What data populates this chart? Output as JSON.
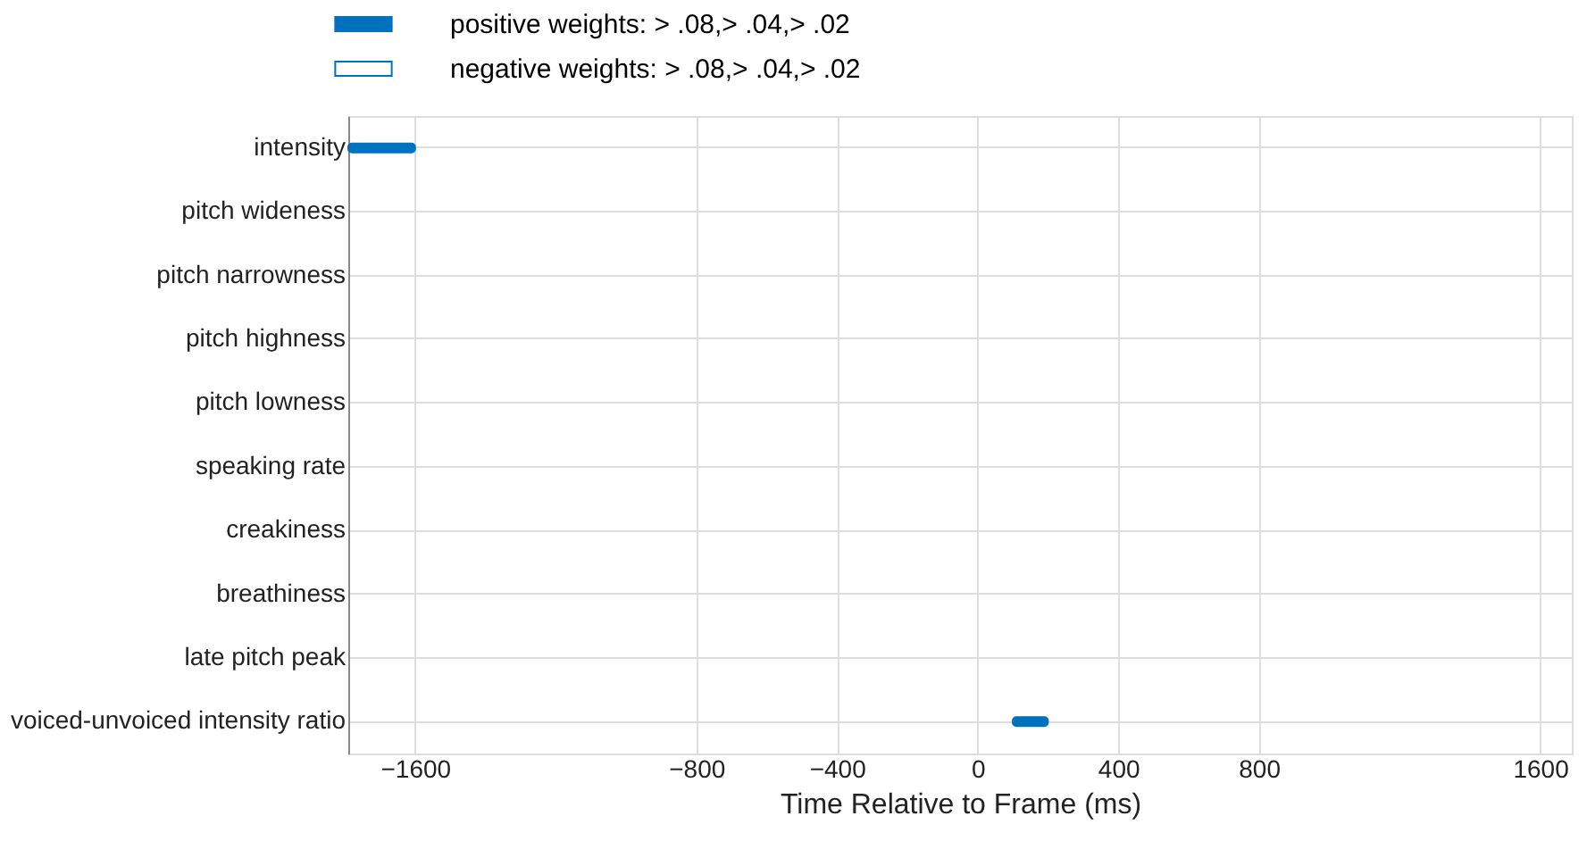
{
  "chart_data": {
    "type": "bar",
    "orientation": "horizontal",
    "xlabel": "Time Relative to Frame (ms)",
    "categories": [
      "intensity",
      "pitch wideness",
      "pitch narrowness",
      "pitch highness",
      "pitch lowness",
      "speaking rate",
      "creakiness",
      "breathiness",
      "late pitch peak",
      "voiced-unvoiced intensity ratio"
    ],
    "series": [
      {
        "name": "positive weights: > .08,> .04,> .02",
        "color": "#0072bd",
        "base": [
          -1790,
          null,
          null,
          null,
          null,
          null,
          null,
          null,
          null,
          100
        ],
        "values": [
          190,
          null,
          null,
          null,
          null,
          null,
          null,
          null,
          null,
          100
        ]
      },
      {
        "name": "negative weights: > .08,> .04,> .02",
        "color": "#ffffff",
        "base": [
          null,
          null,
          null,
          null,
          null,
          null,
          null,
          null,
          null,
          null
        ],
        "values": [
          null,
          null,
          null,
          null,
          null,
          null,
          null,
          null,
          null,
          null
        ]
      }
    ],
    "xlim": [
      -1790,
      1690
    ],
    "xticks": [
      -1600,
      -800,
      -400,
      0,
      400,
      800,
      1600
    ],
    "grid": true,
    "legend": "top"
  }
}
